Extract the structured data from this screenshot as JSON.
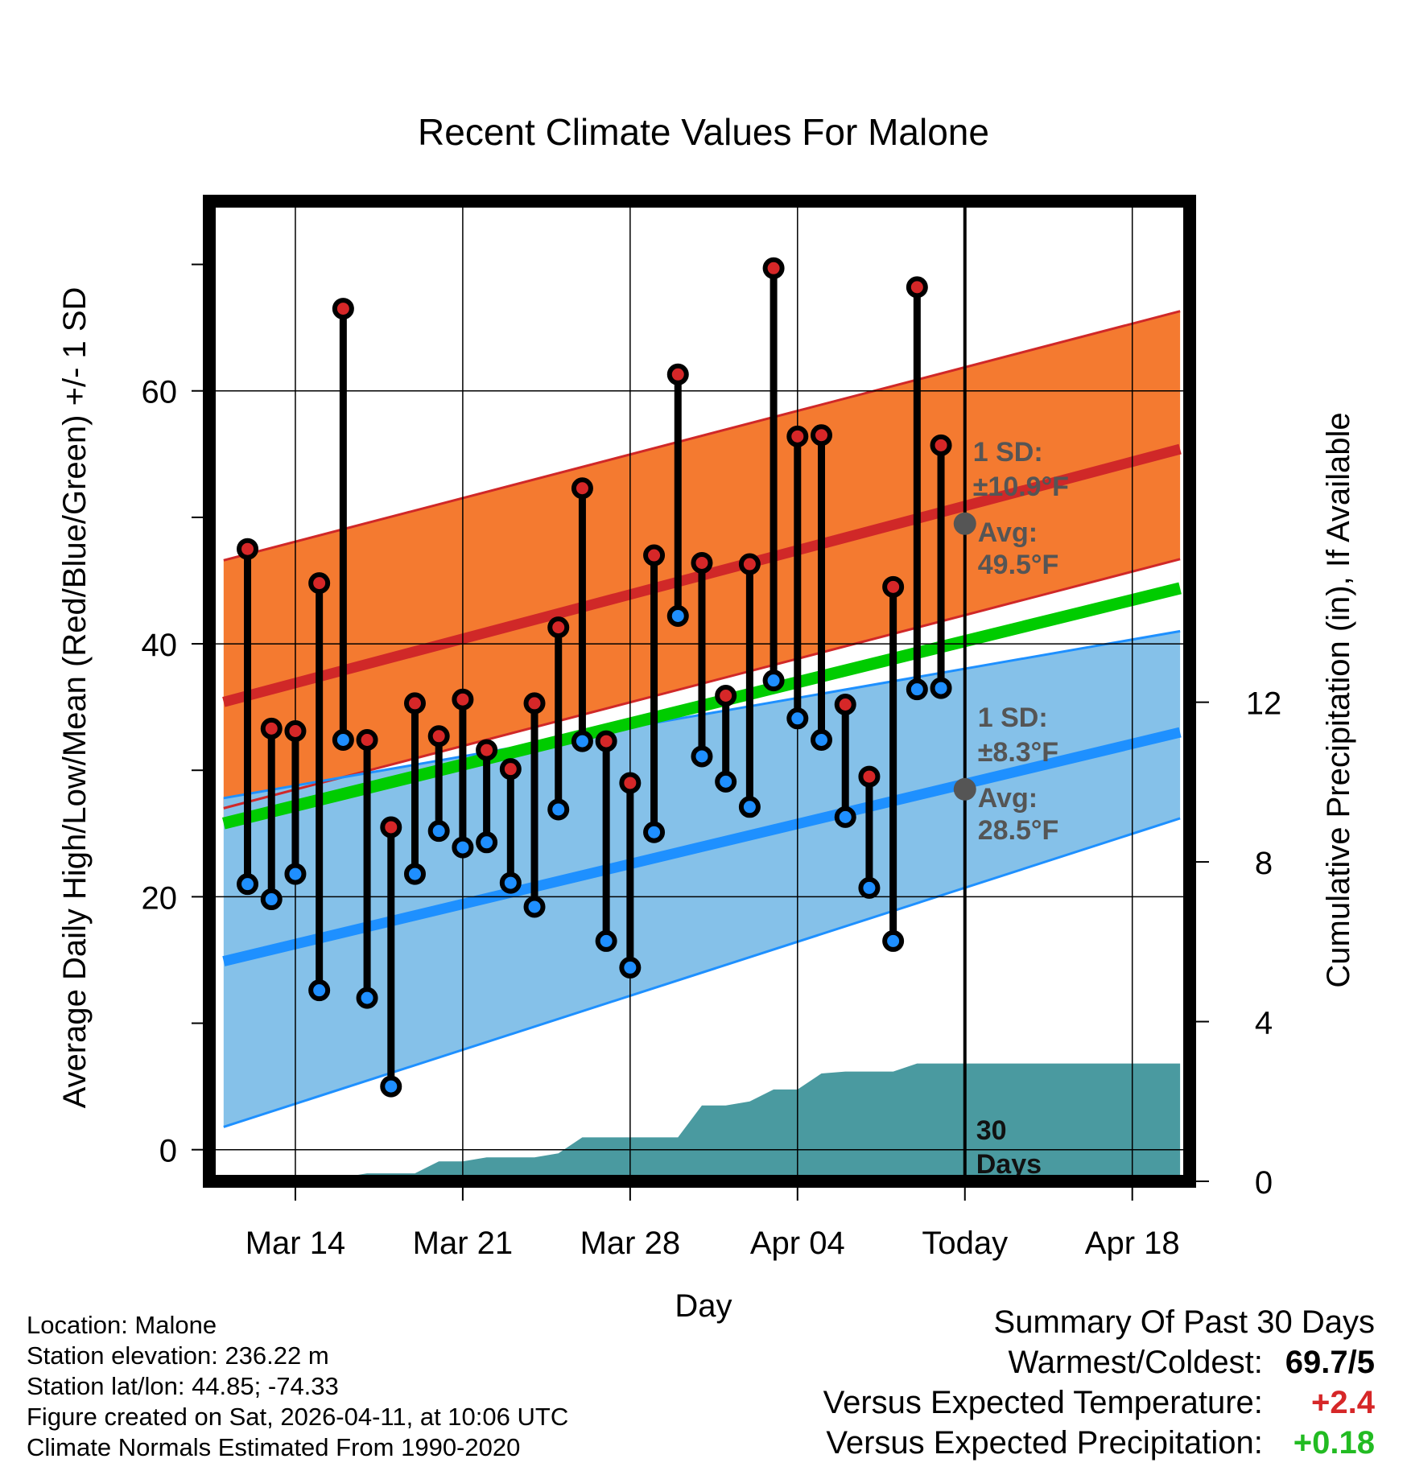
{
  "chart_data": {
    "type": "line",
    "title": "Recent Climate Values For Malone",
    "xlabel": "Day",
    "ylabel": "Average Daily High/Low/Mean (Red/Blue/Green) +/- 1 SD",
    "y2label": "Cumulative Precipitation (in), If Available",
    "xlim": [
      -0.6,
      40.4
    ],
    "ylim": [
      -2.5,
      75
    ],
    "y2lim": [
      0,
      24.55
    ],
    "x_ticks": [
      {
        "x": 3,
        "label": "Mar 14"
      },
      {
        "x": 10,
        "label": "Mar 21"
      },
      {
        "x": 17,
        "label": "Mar 28"
      },
      {
        "x": 24,
        "label": "Apr 04"
      },
      {
        "x": 31,
        "label": "Today"
      },
      {
        "x": 38,
        "label": "Apr 18"
      }
    ],
    "y_ticks": [
      0,
      20,
      40,
      60
    ],
    "y2_ticks": [
      0,
      4,
      8,
      12
    ],
    "today_x": 31,
    "days_x": [
      1,
      2,
      3,
      4,
      5,
      6,
      7,
      8,
      9,
      10,
      11,
      12,
      13,
      14,
      15,
      16,
      17,
      18,
      19,
      20,
      21,
      22,
      23,
      24,
      25,
      26,
      27,
      28,
      29,
      30
    ],
    "series": [
      {
        "name": "Daily High",
        "color": "#d62728",
        "values": [
          47.5,
          33.3,
          33.1,
          44.8,
          66.5,
          32.4,
          25.5,
          35.3,
          32.7,
          35.6,
          31.6,
          30.1,
          35.3,
          41.3,
          52.3,
          32.3,
          29.0,
          47.0,
          61.3,
          46.4,
          35.9,
          46.3,
          69.7,
          56.4,
          56.5,
          35.2,
          29.5,
          44.5,
          68.2,
          55.7
        ]
      },
      {
        "name": "Daily Low",
        "color": "#1f8fff",
        "values": [
          21.0,
          19.8,
          21.8,
          12.6,
          32.4,
          12.0,
          5.0,
          21.8,
          25.2,
          23.9,
          24.3,
          21.1,
          19.2,
          26.9,
          32.3,
          16.5,
          14.4,
          25.1,
          42.2,
          31.1,
          29.1,
          27.1,
          37.1,
          34.1,
          32.4,
          26.3,
          20.7,
          16.5,
          36.4,
          36.5
        ]
      }
    ],
    "normals": {
      "x": [
        0,
        40
      ],
      "high_mean": [
        35.4,
        55.4
      ],
      "high_upper": [
        46.6,
        66.3
      ],
      "high_lower": [
        27.0,
        46.7
      ],
      "low_mean": [
        14.9,
        33.0
      ],
      "low_upper": [
        27.8,
        41.0
      ],
      "low_lower": [
        1.8,
        26.2
      ],
      "mean": [
        25.8,
        44.4
      ],
      "colors": {
        "high_band": "#f47a30",
        "high_line": "#d02828",
        "low_band": "#85c1e9",
        "low_line": "#1e90ff",
        "mean_line": "#00cc00",
        "overlap": "#8b1a1a"
      }
    },
    "precip": {
      "x": [
        0,
        1,
        2,
        3,
        4,
        5,
        6,
        7,
        8,
        9,
        10,
        11,
        12,
        13,
        14,
        15,
        16,
        17,
        18,
        19,
        20,
        21,
        22,
        23,
        24,
        25,
        26,
        27,
        28,
        29,
        30,
        31,
        40
      ],
      "values": [
        0,
        0,
        0,
        0.1,
        0.1,
        0.1,
        0.2,
        0.2,
        0.2,
        0.5,
        0.5,
        0.6,
        0.6,
        0.6,
        0.7,
        1.1,
        1.1,
        1.1,
        1.1,
        1.1,
        1.9,
        1.9,
        2.0,
        2.3,
        2.3,
        2.7,
        2.75,
        2.75,
        2.75,
        2.95,
        2.95,
        2.95,
        2.95
      ],
      "color": "#4a9aa0"
    },
    "annotations": {
      "high_sd_label": "1 SD:",
      "high_sd_value": "±10.9°F",
      "high_avg_label": "Avg:",
      "high_avg_value": "49.5°F",
      "high_today": 49.5,
      "low_sd_label": "1 SD:",
      "low_sd_value": "±8.3°F",
      "low_avg_label": "Avg:",
      "low_avg_value": "28.5°F",
      "low_today": 28.5,
      "days_number": "30",
      "days_word": "Days"
    }
  },
  "info": {
    "location": "Location: Malone",
    "elevation": "Station elevation: 236.22 m",
    "latlon": "Station lat/lon: 44.85; -74.33",
    "created": "Figure created on Sat, 2026-04-11, at 10:06 UTC",
    "normals": "Climate Normals Estimated From 1990-2020"
  },
  "summary": {
    "title": "Summary Of Past 30 Days",
    "warmest_label": "Warmest/Coldest:",
    "warmest_value": "69.7/5",
    "temp_label": "Versus Expected Temperature:",
    "temp_value": "+2.4",
    "temp_color": "#d62728",
    "precip_label": "Versus Expected Precipitation:",
    "precip_value": "+0.18",
    "precip_color": "#22bb22"
  }
}
